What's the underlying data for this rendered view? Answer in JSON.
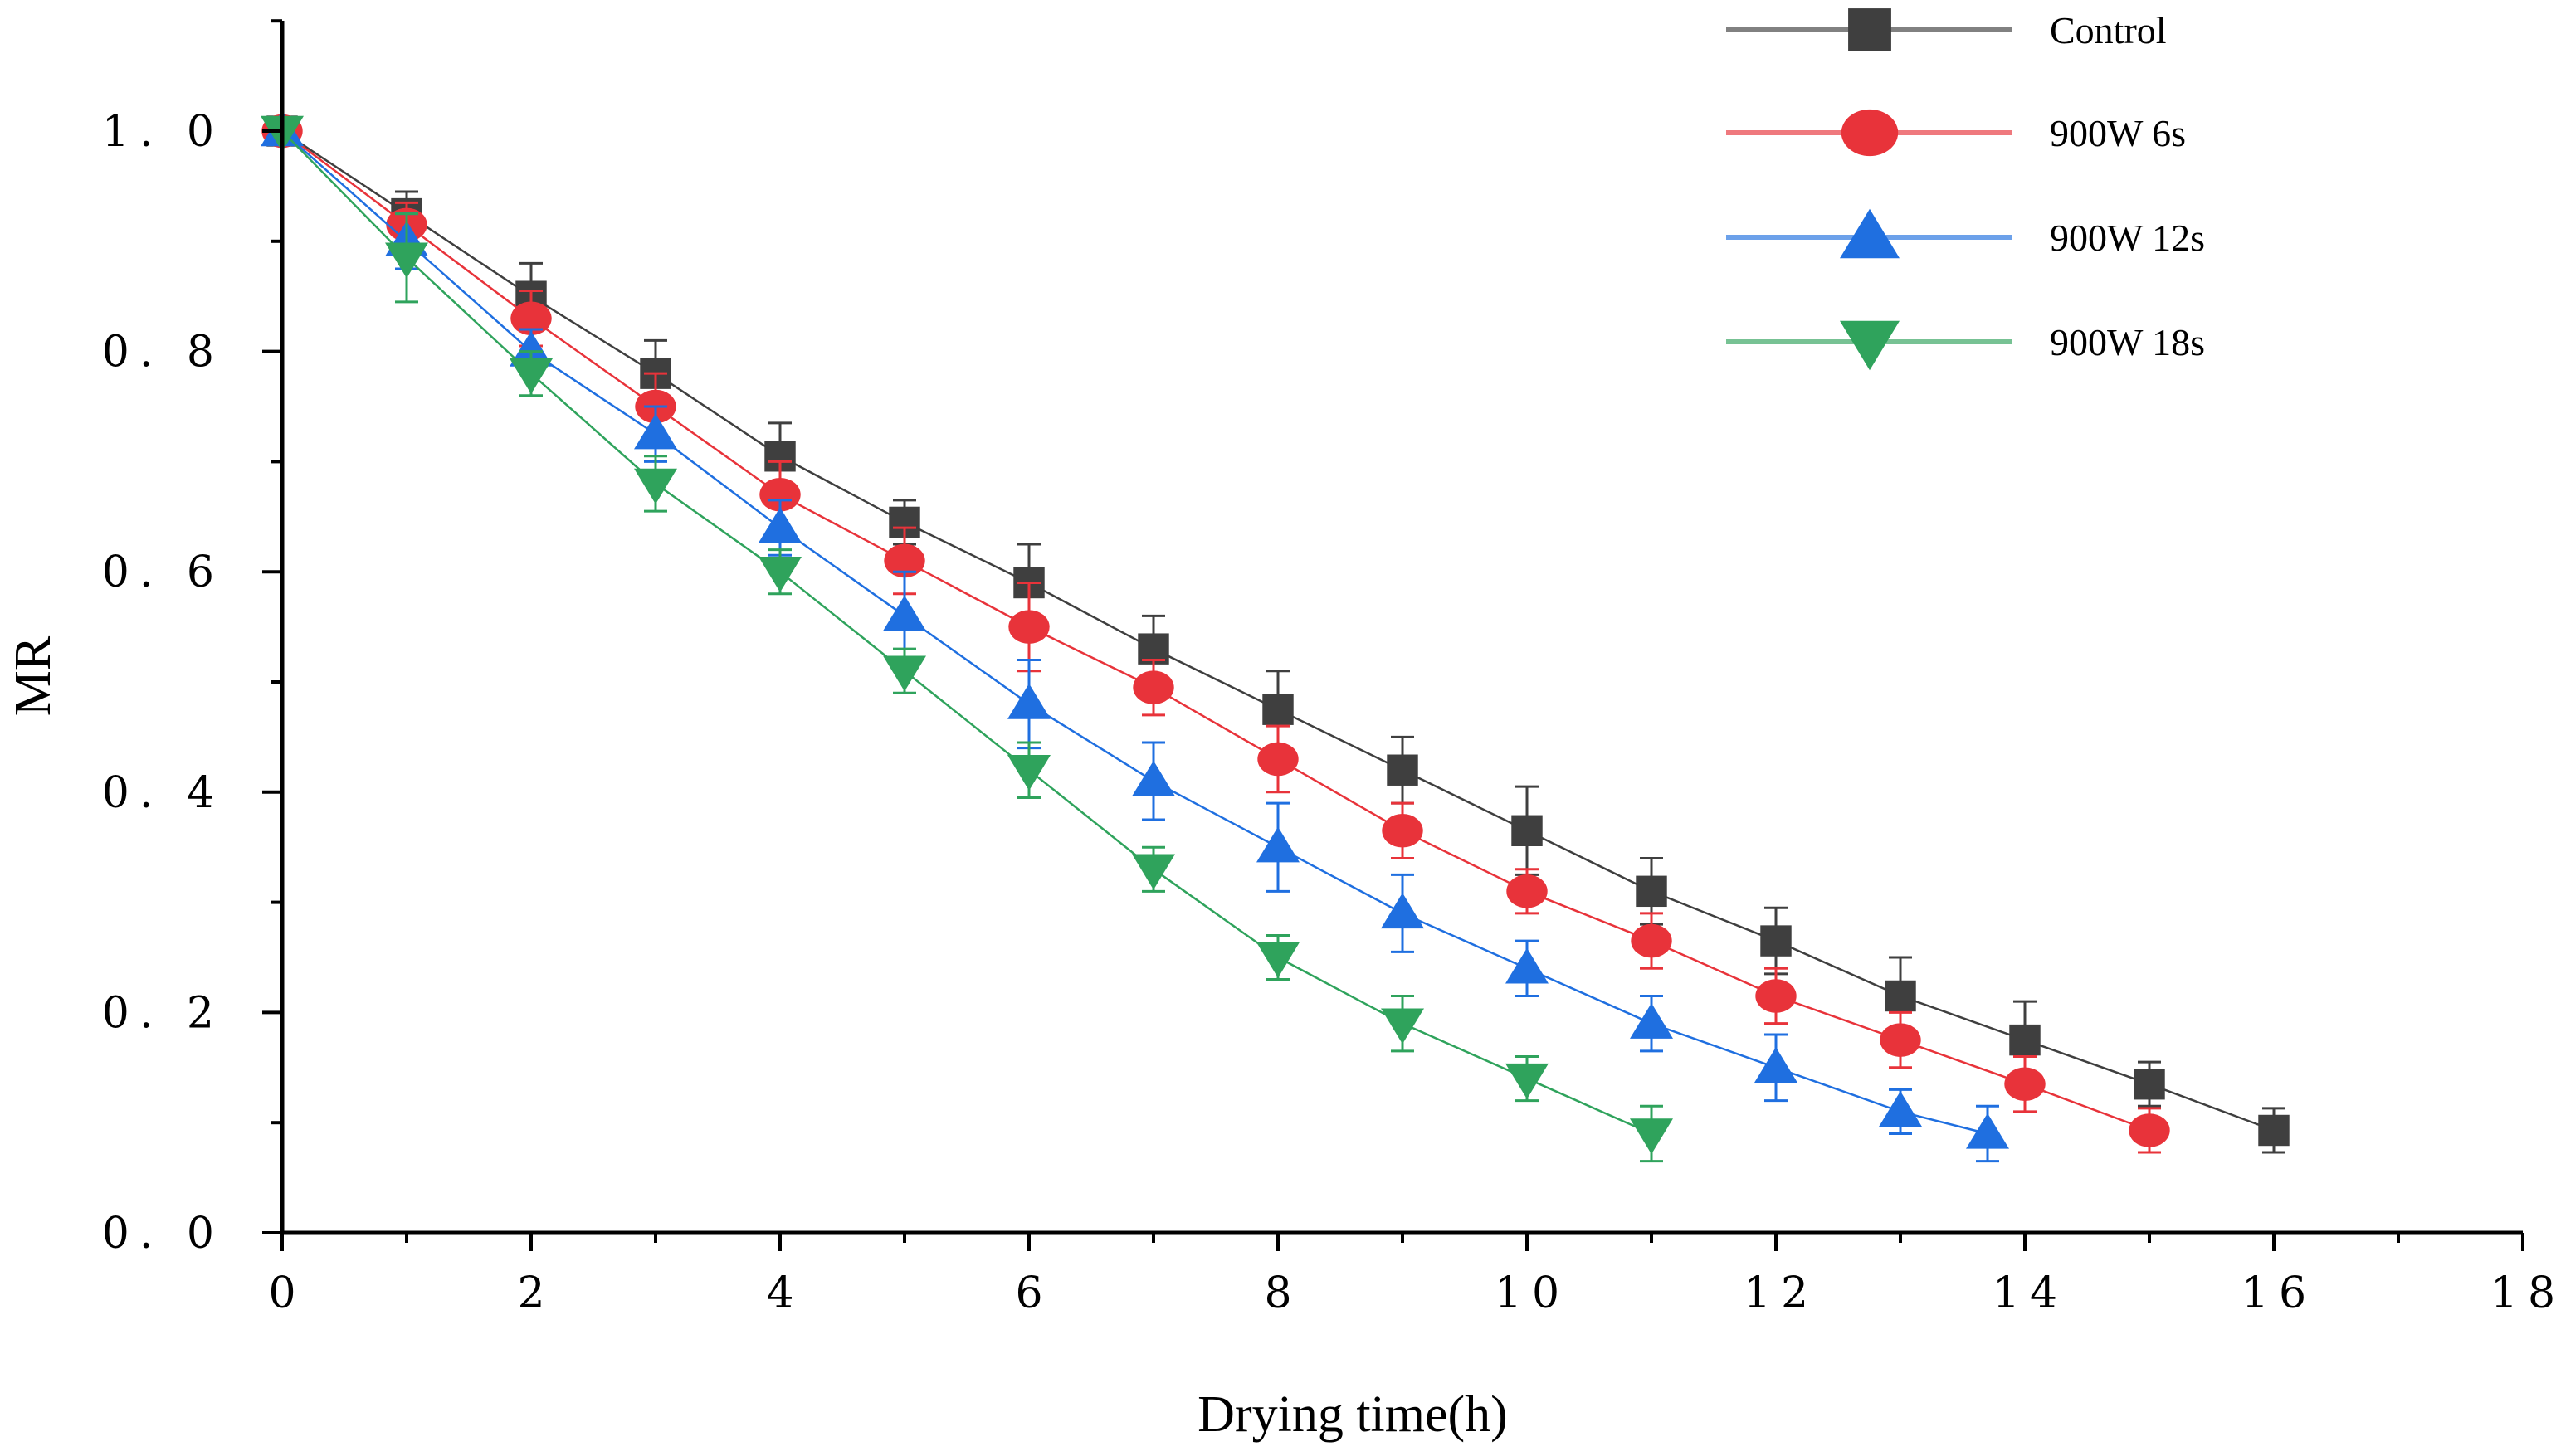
{
  "chart_data": {
    "type": "line",
    "title": "",
    "xlabel": "Drying time(h)",
    "ylabel": "MR",
    "xlim": [
      0,
      18
    ],
    "ylim": [
      0,
      1.1
    ],
    "xticks": [
      0,
      2,
      4,
      6,
      8,
      10,
      12,
      14,
      16,
      18
    ],
    "yticks": [
      0.0,
      0.2,
      0.4,
      0.6,
      0.8,
      1.0
    ],
    "xtick_labels": [
      "0",
      "2",
      "4",
      "6",
      "8",
      "10",
      "12",
      "14",
      "16",
      "18"
    ],
    "ytick_labels": [
      "0. 0",
      "0. 2",
      "0. 4",
      "0. 6",
      "0. 8",
      "1. 0"
    ],
    "grid": false,
    "legend_position": "top-right",
    "series": [
      {
        "name": "Control",
        "color": "#3f3f3f",
        "marker": "square",
        "x": [
          0,
          1,
          2,
          3,
          4,
          5,
          6,
          7,
          8,
          9,
          10,
          11,
          12,
          13,
          14,
          15,
          16
        ],
        "y": [
          1.0,
          0.925,
          0.85,
          0.78,
          0.705,
          0.645,
          0.59,
          0.53,
          0.475,
          0.42,
          0.365,
          0.31,
          0.265,
          0.215,
          0.175,
          0.135,
          0.093
        ],
        "err": [
          0.0,
          0.02,
          0.03,
          0.03,
          0.03,
          0.02,
          0.035,
          0.03,
          0.035,
          0.03,
          0.04,
          0.03,
          0.03,
          0.035,
          0.035,
          0.02,
          0.02
        ]
      },
      {
        "name": "900W 6s",
        "color": "#e8333a",
        "marker": "circle",
        "x": [
          0,
          1,
          2,
          3,
          4,
          5,
          6,
          7,
          8,
          9,
          10,
          11,
          12,
          13,
          14,
          15
        ],
        "y": [
          1.0,
          0.915,
          0.83,
          0.75,
          0.67,
          0.61,
          0.55,
          0.495,
          0.43,
          0.365,
          0.31,
          0.265,
          0.215,
          0.175,
          0.135,
          0.093
        ],
        "err": [
          0.0,
          0.02,
          0.025,
          0.03,
          0.03,
          0.03,
          0.04,
          0.025,
          0.03,
          0.025,
          0.02,
          0.025,
          0.025,
          0.025,
          0.025,
          0.02
        ]
      },
      {
        "name": "900W 12s",
        "color": "#1f6fe0",
        "marker": "triangle-up",
        "x": [
          0,
          1,
          2,
          3,
          4,
          5,
          6,
          7,
          8,
          9,
          10,
          11,
          12,
          13,
          13.7
        ],
        "y": [
          1.0,
          0.9,
          0.8,
          0.725,
          0.64,
          0.56,
          0.48,
          0.41,
          0.35,
          0.29,
          0.24,
          0.19,
          0.15,
          0.11,
          0.09
        ],
        "err": [
          0.0,
          0.025,
          0.02,
          0.025,
          0.025,
          0.04,
          0.04,
          0.035,
          0.04,
          0.035,
          0.025,
          0.025,
          0.03,
          0.02,
          0.025
        ]
      },
      {
        "name": "900W 18s",
        "color": "#2fa35c",
        "marker": "triangle-down",
        "x": [
          0,
          1,
          2,
          3,
          4,
          5,
          6,
          7,
          8,
          9,
          10,
          11
        ],
        "y": [
          1.0,
          0.885,
          0.78,
          0.68,
          0.6,
          0.51,
          0.42,
          0.33,
          0.25,
          0.19,
          0.14,
          0.09
        ],
        "err": [
          0.0,
          0.04,
          0.02,
          0.025,
          0.02,
          0.02,
          0.025,
          0.02,
          0.02,
          0.025,
          0.02,
          0.025
        ]
      }
    ]
  }
}
